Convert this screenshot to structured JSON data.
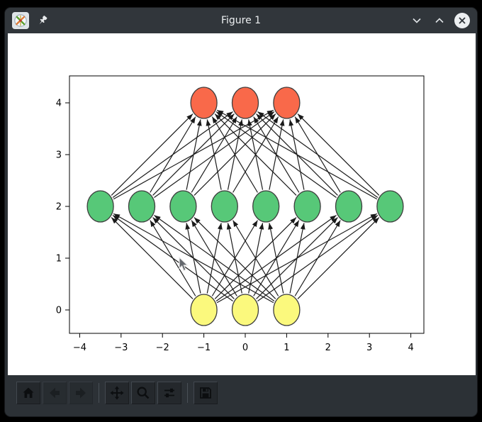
{
  "window": {
    "title": "Figure 1",
    "app_icon": "matplotlib-tools-icon",
    "controls": {
      "pin": "pin",
      "minimize": "chevron-down",
      "maximize": "chevron-up",
      "close": "x-circle"
    }
  },
  "toolbar": {
    "buttons": [
      {
        "id": "home",
        "enabled": true
      },
      {
        "id": "back",
        "enabled": false
      },
      {
        "id": "forward",
        "enabled": false
      },
      {
        "id": "pan",
        "enabled": true
      },
      {
        "id": "zoom",
        "enabled": true
      },
      {
        "id": "configure-subplots",
        "enabled": true
      },
      {
        "id": "save",
        "enabled": true
      }
    ]
  },
  "chart_data": {
    "type": "scatter",
    "title": "",
    "xlabel": "",
    "ylabel": "",
    "xlim": [
      -4.25,
      4.31
    ],
    "ylim": [
      -0.45,
      4.52
    ],
    "grid": false,
    "x_ticks": [
      -4,
      -3,
      -2,
      -1,
      0,
      1,
      2,
      3,
      4
    ],
    "x_tick_labels": [
      "−4",
      "−3",
      "−2",
      "−1",
      "0",
      "1",
      "2",
      "3",
      "4"
    ],
    "y_ticks": [
      0,
      1,
      2,
      3,
      4
    ],
    "y_tick_labels": [
      "0",
      "1",
      "2",
      "3",
      "4"
    ],
    "network": {
      "connection_rule": "fully-connected-consecutive-layers-arrows-upward",
      "edge_color": "#1a1a1a",
      "node_outline": "#3d3d3d",
      "layers": [
        {
          "name": "input-layer",
          "y": 0,
          "x": [
            -1,
            0,
            1
          ],
          "fill": "#fbf97d"
        },
        {
          "name": "hidden-layer",
          "y": 2,
          "x": [
            -3.5,
            -2.5,
            -1.5,
            -0.5,
            0.5,
            1.5,
            2.5,
            3.5
          ],
          "fill": "#57c878"
        },
        {
          "name": "output-layer",
          "y": 4,
          "x": [
            -1,
            0,
            1
          ],
          "fill": "#f9694a"
        }
      ]
    }
  },
  "cursor": {
    "page_x": 252,
    "page_y": 362
  }
}
